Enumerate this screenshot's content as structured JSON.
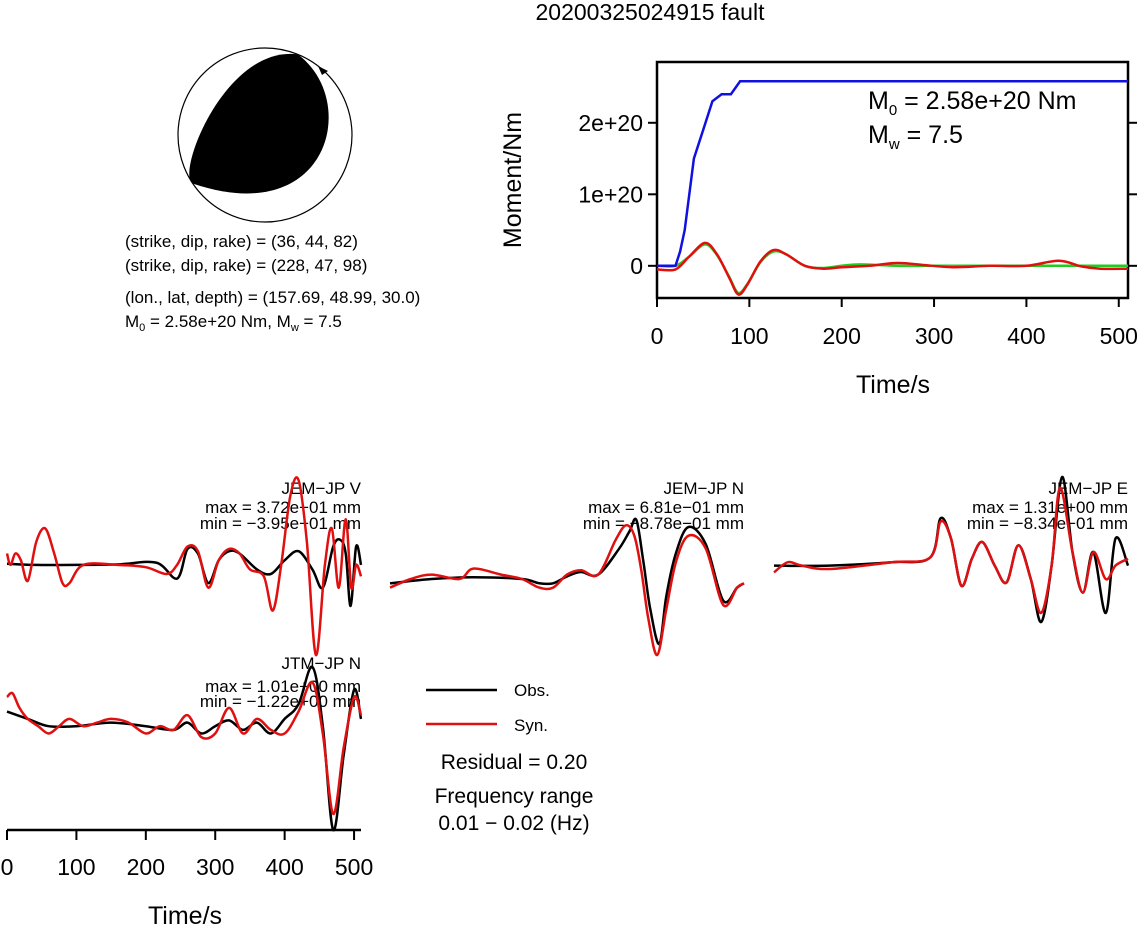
{
  "title": "20200325024915 fault",
  "mechanism": {
    "line1_label": "(strike, dip, rake) = ",
    "line1_value": "(36, 44, 82)",
    "line2_label": "(strike, dip, rake) = ",
    "line2_value": "(228, 47, 98)",
    "line3_label": "(lon., lat, depth) = ",
    "line3_value": "(157.69, 48.99, 30.0)",
    "moment_line": {
      "m_main": "M",
      "m_sub": "0",
      "m_rest": " = 2.58e+20 Nm, M",
      "w_sub": "w",
      "w_rest": " = 7.5"
    },
    "colors": {
      "compression": "#000000",
      "dilatation": "#ffffff",
      "outline": "#000000"
    }
  },
  "moment_plot": {
    "ylabel": "Moment/Nm",
    "xlabel": "Time/s",
    "xticks": [
      "0",
      "100",
      "200",
      "300",
      "400",
      "500"
    ],
    "yticks": [
      "0",
      "1e+20",
      "2e+20"
    ],
    "annotation": {
      "m0_main": "M",
      "m0_sub": "0",
      "m0_rest": " = 2.58e+20 Nm",
      "mw_main": "M",
      "mw_sub": "w",
      "mw_rest": " = 7.5"
    }
  },
  "waveforms": {
    "panels": [
      {
        "station": "JEM−JP V",
        "max": "max = 3.72e−01 mm",
        "min": "min = −3.95e−01 mm"
      },
      {
        "station": "JEM−JP N",
        "max": "max = 6.81e−01 mm",
        "min": "min = −8.78e−01 mm"
      },
      {
        "station": "JEM−JP E",
        "max": "max = 1.31e+00 mm",
        "min": "min = −8.34e−01 mm"
      },
      {
        "station": "JTM−JP N",
        "max": "max = 1.01e+00 mm",
        "min": "min = −1.22e+00 mm"
      }
    ],
    "xlabel": "Time/s",
    "xticks": [
      "0",
      "100",
      "200",
      "300",
      "400",
      "500"
    ]
  },
  "legend": {
    "obs_label": "Obs.",
    "syn_label": "Syn.",
    "residual": "Residual = 0.20",
    "freq_title": "Frequency range",
    "freq_value": "0.01 − 0.02 (Hz)"
  },
  "chart_data": [
    {
      "type": "line",
      "xlabel": "Time/s",
      "ylabel": "Moment/Nm",
      "xlim": [
        0,
        510
      ],
      "ylim": [
        -4.5e+19,
        2.85e+20
      ],
      "x_ticks": [
        0,
        100,
        200,
        300,
        400,
        500
      ],
      "y_ticks": [
        0,
        1e+20,
        2e+20
      ],
      "colors": {
        "moment": "#1010e0",
        "rate_obs": "#20cc20",
        "rate_syn": "#e01010"
      },
      "series": [
        {
          "x": [
            0,
            20,
            25,
            30,
            40,
            50,
            60,
            70,
            80,
            90,
            500,
            510
          ],
          "y": [
            0,
            0,
            2e+19,
            5e+19,
            1.5e+20,
            1.9e+20,
            2.3e+20,
            2.4e+20,
            2.4e+20,
            2.58e+20,
            2.58e+20,
            2.58e+20
          ]
        },
        {
          "x": [
            0,
            20,
            35,
            52,
            65,
            78,
            88,
            98,
            112,
            126,
            140,
            160,
            180,
            200,
            220,
            260,
            300,
            400,
            510
          ],
          "y": [
            0,
            0,
            1.3e+19,
            3e+19,
            1.5e+19,
            -1.5e+19,
            -3.8e+19,
            -2.5e+19,
            5e+18,
            2e+19,
            1.6e+19,
            0,
            -3e+18,
            0,
            2e+18,
            0,
            0,
            0,
            0
          ]
        },
        {
          "x": [
            0,
            20,
            35,
            52,
            65,
            78,
            88,
            98,
            112,
            126,
            140,
            160,
            180,
            200,
            230,
            260,
            290,
            320,
            360,
            400,
            435,
            460,
            480,
            510
          ],
          "y": [
            -5e+18,
            -5e+18,
            1.3e+19,
            3.2e+19,
            1.6e+19,
            -1.6e+19,
            -4e+19,
            -2.6e+19,
            6e+18,
            2.2e+19,
            1.6e+19,
            0,
            -4e+18,
            -2e+18,
            0,
            4e+18,
            1e+18,
            -2e+18,
            0,
            0,
            7e+18,
            -1e+18,
            -4e+18,
            -4e+18
          ]
        }
      ]
    },
    {
      "type": "line",
      "panel": "JEM−JP V",
      "xlim": [
        0,
        510
      ],
      "ylim": [
        -0.395,
        0.372
      ],
      "colors": {
        "obs": "#000000",
        "syn": "#e01010"
      },
      "series": [
        {
          "name": "Obs.",
          "x": [
            0,
            40,
            100,
            160,
            215,
            245,
            260,
            275,
            290,
            305,
            320,
            335,
            360,
            380,
            400,
            420,
            440,
            455,
            470,
            480,
            488,
            495,
            503,
            510
          ],
          "y": [
            0.005,
            0.0,
            0.0,
            0.002,
            0.01,
            -0.06,
            0.07,
            0.05,
            -0.08,
            0.02,
            0.06,
            0.05,
            -0.02,
            -0.04,
            0.02,
            0.06,
            -0.02,
            -0.1,
            0.08,
            0.11,
            0.05,
            -0.18,
            0.08,
            0.0
          ]
        },
        {
          "name": "Syn.",
          "x": [
            0,
            5,
            12,
            20,
            30,
            42,
            55,
            68,
            80,
            90,
            110,
            160,
            200,
            230,
            245,
            260,
            275,
            290,
            305,
            320,
            335,
            350,
            370,
            383,
            395,
            408,
            420,
            432,
            445,
            458,
            468,
            478,
            488,
            496,
            503,
            510
          ],
          "y": [
            0.05,
            0.0,
            0.05,
            0.02,
            -0.07,
            0.1,
            0.16,
            0.05,
            -0.08,
            -0.08,
            0.0,
            0.0,
            -0.01,
            -0.04,
            0.0,
            0.08,
            0.06,
            -0.1,
            0.02,
            0.07,
            0.05,
            -0.02,
            -0.05,
            -0.2,
            0.0,
            0.3,
            0.372,
            0.1,
            -0.395,
            0.0,
            0.16,
            -0.1,
            0.2,
            -0.1,
            0.0,
            -0.05
          ]
        }
      ]
    },
    {
      "type": "line",
      "panel": "JEM−JP N",
      "xlim": [
        0,
        510
      ],
      "ylim": [
        -0.878,
        0.681
      ],
      "colors": {
        "obs": "#000000",
        "syn": "#e01010"
      },
      "series": [
        {
          "name": "Obs.",
          "x": [
            0,
            60,
            120,
            190,
            215,
            235,
            255,
            275,
            300,
            330,
            345,
            355,
            365,
            375,
            388,
            398,
            412,
            430,
            455,
            480,
            500,
            510
          ],
          "y": [
            -0.05,
            0.0,
            0.02,
            0.0,
            -0.05,
            -0.05,
            0.03,
            0.08,
            0.05,
            0.35,
            0.55,
            0.681,
            0.2,
            -0.35,
            -0.75,
            -0.2,
            0.3,
            0.6,
            0.4,
            -0.25,
            -0.1,
            -0.05
          ]
        },
        {
          "name": "Syn.",
          "x": [
            0,
            30,
            60,
            100,
            120,
            160,
            190,
            215,
            235,
            255,
            275,
            300,
            325,
            340,
            352,
            362,
            372,
            385,
            398,
            412,
            430,
            455,
            480,
            500,
            510
          ],
          "y": [
            -0.1,
            0.0,
            0.05,
            0.0,
            0.12,
            0.05,
            0.0,
            -0.1,
            -0.1,
            0.05,
            0.1,
            0.05,
            0.45,
            0.62,
            0.5,
            0.1,
            -0.45,
            -0.878,
            -0.35,
            0.2,
            0.5,
            0.35,
            -0.3,
            -0.1,
            -0.05
          ]
        }
      ]
    },
    {
      "type": "line",
      "panel": "JEM−JP E",
      "xlim": [
        0,
        510
      ],
      "ylim": [
        -0.834,
        1.31
      ],
      "colors": {
        "obs": "#000000",
        "syn": "#e01010"
      },
      "series": [
        {
          "name": "Obs.",
          "x": [
            0,
            80,
            170,
            225,
            240,
            255,
            270,
            285,
            300,
            318,
            335,
            352,
            370,
            385,
            400,
            415,
            430,
            445,
            460,
            478,
            492,
            510
          ],
          "y": [
            0.0,
            0.0,
            0.05,
            0.12,
            0.7,
            0.4,
            -0.3,
            0.1,
            0.35,
            0.0,
            -0.25,
            0.3,
            -0.2,
            -0.834,
            0.0,
            1.31,
            0.2,
            -0.4,
            0.2,
            -0.7,
            0.4,
            0.0
          ]
        },
        {
          "name": "Syn.",
          "x": [
            0,
            20,
            40,
            80,
            170,
            225,
            240,
            255,
            270,
            285,
            300,
            318,
            335,
            352,
            370,
            385,
            400,
            412,
            430,
            445,
            460,
            478,
            492,
            510
          ],
          "y": [
            -0.1,
            0.05,
            0.0,
            -0.05,
            0.05,
            0.12,
            0.65,
            0.4,
            -0.3,
            0.1,
            0.35,
            0.0,
            -0.25,
            0.3,
            -0.2,
            -0.7,
            0.0,
            1.15,
            0.2,
            -0.4,
            0.2,
            -0.2,
            0.0,
            0.1
          ]
        }
      ]
    },
    {
      "type": "line",
      "panel": "JTM−JP N",
      "xlim": [
        0,
        510
      ],
      "ylim": [
        -1.22,
        1.01
      ],
      "colors": {
        "obs": "#000000",
        "syn": "#e01010"
      },
      "series": [
        {
          "name": "Obs.",
          "x": [
            0,
            30,
            60,
            100,
            150,
            200,
            240,
            260,
            280,
            300,
            320,
            340,
            360,
            380,
            400,
            420,
            440,
            455,
            470,
            485,
            500,
            510
          ],
          "y": [
            0.4,
            0.3,
            0.2,
            0.2,
            0.25,
            0.2,
            0.15,
            0.25,
            0.1,
            0.2,
            0.28,
            0.15,
            0.25,
            0.1,
            0.3,
            0.5,
            1.01,
            0.2,
            -1.22,
            -0.2,
            0.7,
            0.3
          ]
        },
        {
          "name": "Syn.",
          "x": [
            0,
            8,
            18,
            30,
            45,
            60,
            75,
            90,
            110,
            130,
            150,
            175,
            200,
            220,
            240,
            260,
            280,
            300,
            320,
            340,
            360,
            380,
            400,
            420,
            440,
            455,
            470,
            485,
            500,
            510
          ],
          "y": [
            0.6,
            0.65,
            0.45,
            0.3,
            0.2,
            0.1,
            0.2,
            0.3,
            0.2,
            0.25,
            0.3,
            0.25,
            0.1,
            0.2,
            0.15,
            0.35,
            0.05,
            0.1,
            0.45,
            0.1,
            0.3,
            0.15,
            0.1,
            0.4,
            0.8,
            0.1,
            -1.0,
            -0.1,
            0.6,
            0.35
          ]
        }
      ]
    }
  ]
}
